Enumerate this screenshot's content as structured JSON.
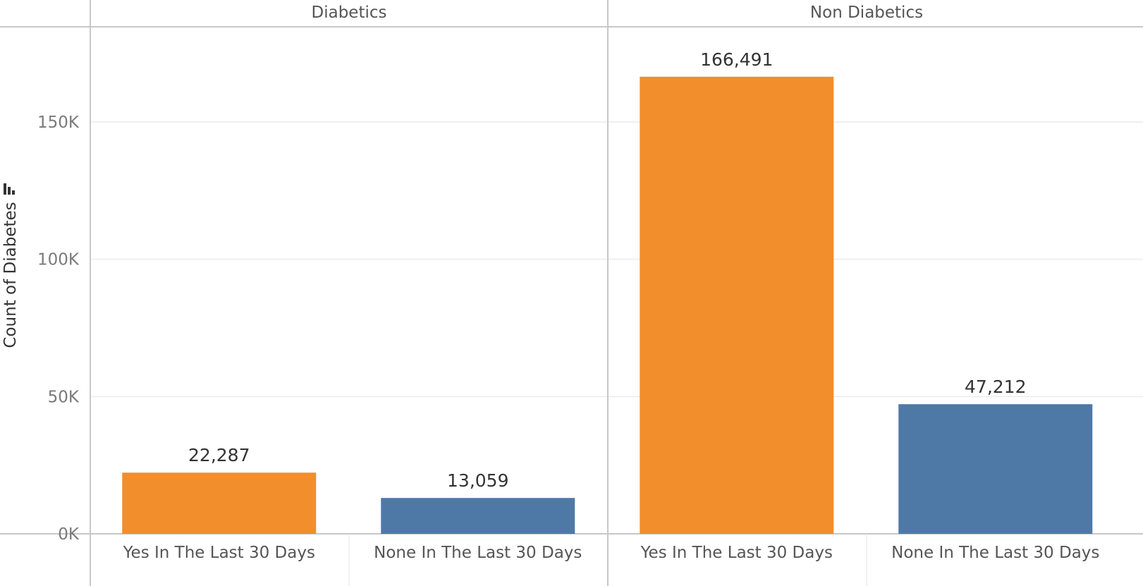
{
  "chart_data": {
    "type": "bar",
    "ylabel": "Count of Diabetes",
    "ylim": [
      0,
      180000
    ],
    "yticks": [
      {
        "value": 0,
        "label": "0K"
      },
      {
        "value": 50000,
        "label": "50K"
      },
      {
        "value": 100000,
        "label": "100K"
      },
      {
        "value": 150000,
        "label": "150K"
      }
    ],
    "grid": true,
    "panels": [
      {
        "header": "Diabetics",
        "bars": [
          {
            "category": "Yes In The Last 30 Days",
            "value": 22287,
            "label": "22,287",
            "color": "#f28e2b"
          },
          {
            "category": "None In The Last 30 Days",
            "value": 13059,
            "label": "13,059",
            "color": "#4e79a7"
          }
        ]
      },
      {
        "header": "Non Diabetics",
        "bars": [
          {
            "category": "Yes In The Last 30 Days",
            "value": 166491,
            "label": "166,491",
            "color": "#f28e2b"
          },
          {
            "category": "None In The Last 30 Days",
            "value": 47212,
            "label": "47,212",
            "color": "#4e79a7"
          }
        ]
      }
    ]
  }
}
